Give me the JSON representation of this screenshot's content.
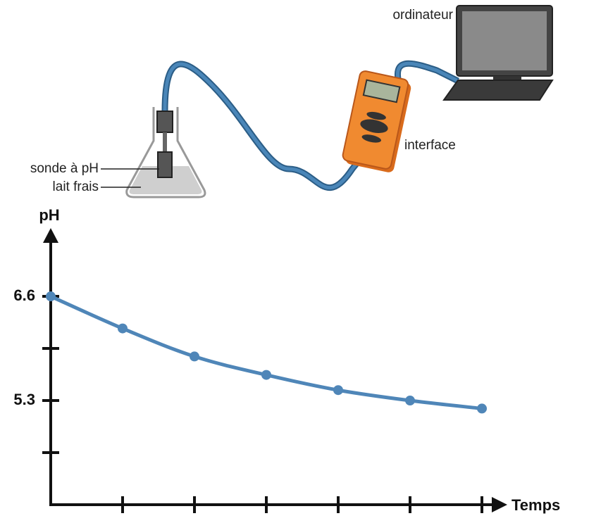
{
  "labels": {
    "computer": "ordinateur",
    "interface": "interface",
    "probe": "sonde à pH",
    "milk": "lait frais"
  },
  "chart_data": {
    "type": "line",
    "y_label": "pH",
    "x_label": "Temps",
    "categories": [
      null,
      null,
      null,
      null,
      null,
      null,
      null
    ],
    "series": [
      {
        "name": null,
        "color": "#4f86b8",
        "values": [
          6.6,
          6.2,
          5.85,
          5.62,
          5.43,
          5.3,
          5.2
        ]
      }
    ],
    "ylim": [
      4.0,
      7.4
    ],
    "yticks": [
      {
        "value": 4.65,
        "label": null
      },
      5.3,
      {
        "value": 5.95,
        "label": null
      },
      6.6
    ],
    "markers": true
  }
}
